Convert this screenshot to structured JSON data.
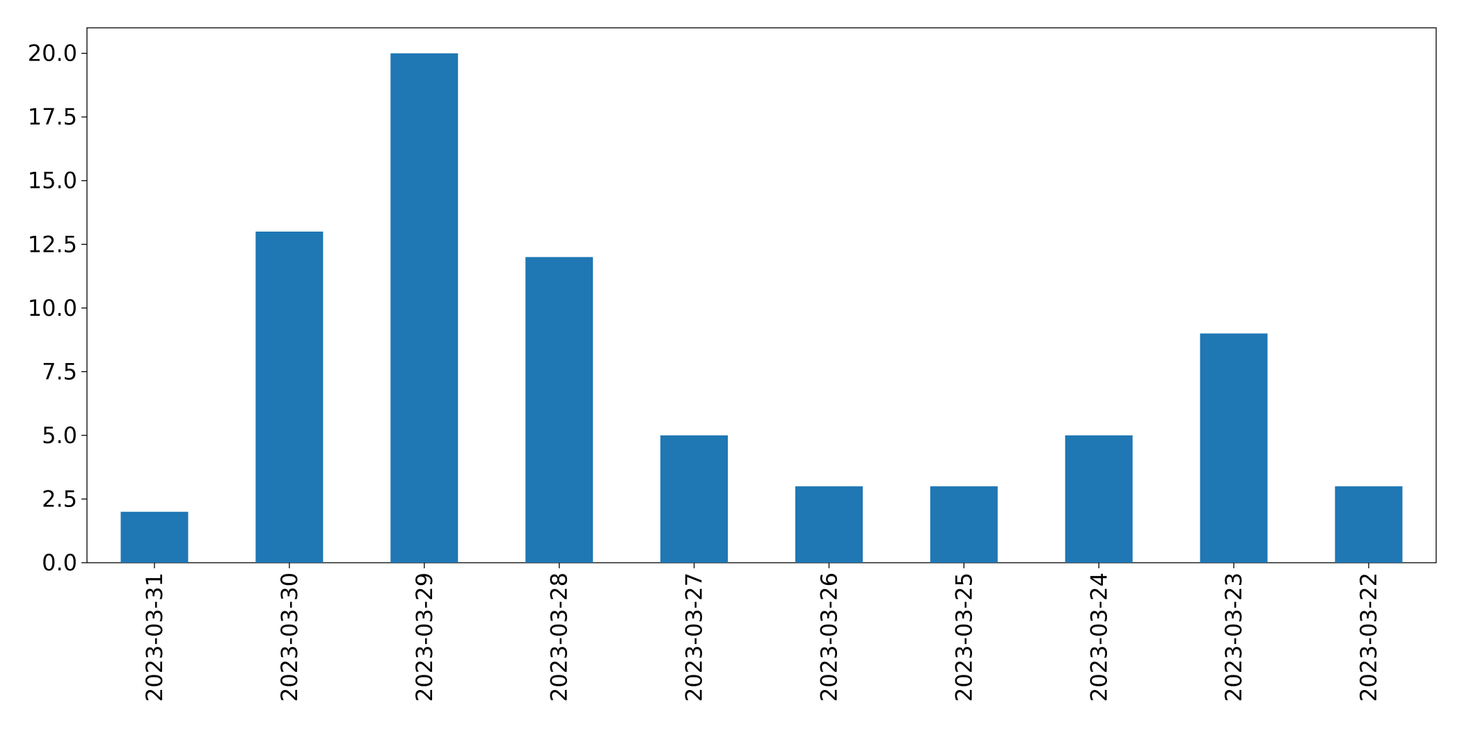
{
  "chart_data": {
    "type": "bar",
    "categories": [
      "2023-03-31",
      "2023-03-30",
      "2023-03-29",
      "2023-03-28",
      "2023-03-27",
      "2023-03-26",
      "2023-03-25",
      "2023-03-24",
      "2023-03-23",
      "2023-03-22"
    ],
    "values": [
      2,
      13,
      20,
      12,
      5,
      3,
      3,
      5,
      9,
      3
    ],
    "color": "#1f77b4",
    "ylim": [
      0,
      21
    ],
    "yticks": [
      {
        "value": 0,
        "label": "0.0"
      },
      {
        "value": 2.5,
        "label": "2.5"
      },
      {
        "value": 5,
        "label": "5.0"
      },
      {
        "value": 7.5,
        "label": "7.5"
      },
      {
        "value": 10,
        "label": "10.0"
      },
      {
        "value": 12.5,
        "label": "12.5"
      },
      {
        "value": 15,
        "label": "15.0"
      },
      {
        "value": 17.5,
        "label": "17.5"
      },
      {
        "value": 20,
        "label": "20.0"
      }
    ],
    "grid": false
  }
}
